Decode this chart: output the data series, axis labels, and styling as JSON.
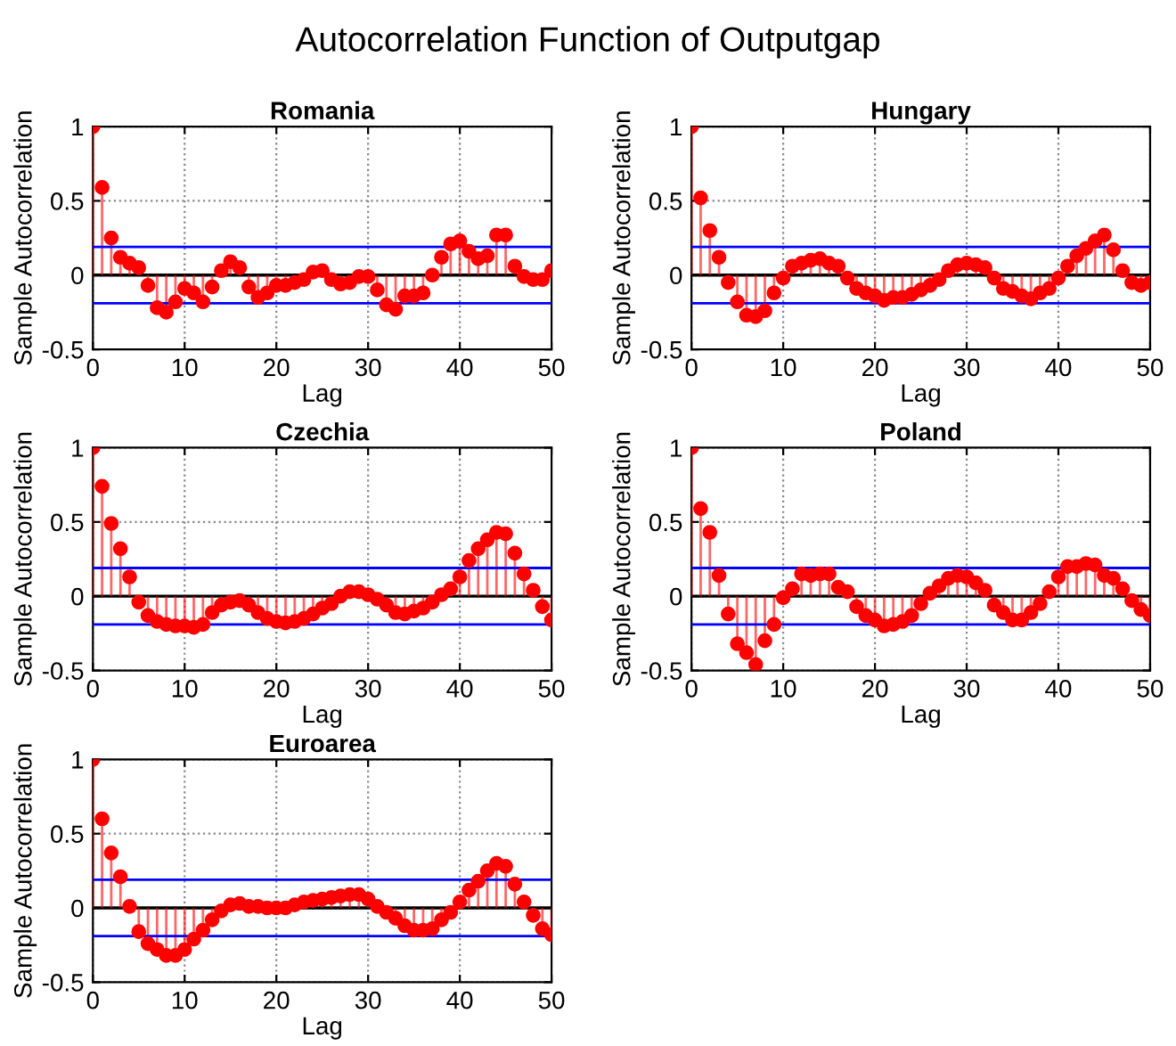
{
  "chart_data": [
    {
      "type": "lollipop",
      "title": "Romania",
      "xlabel": "Lag",
      "ylabel": "Sample Autocorrelation",
      "annotations": [
        "Autocorrelation Function of Outputgap"
      ],
      "x": [
        0,
        1,
        2,
        3,
        4,
        5,
        6,
        7,
        8,
        9,
        10,
        11,
        12,
        13,
        14,
        15,
        16,
        17,
        18,
        19,
        20,
        21,
        22,
        23,
        24,
        25,
        26,
        27,
        28,
        29,
        30,
        31,
        32,
        33,
        34,
        35,
        36,
        37,
        38,
        39,
        40,
        41,
        42,
        43,
        44,
        45,
        46,
        47,
        48,
        49,
        50
      ],
      "series": [
        {
          "color": "#ff0000",
          "values": [
            1,
            0.59,
            0.25,
            0.12,
            0.08,
            0.05,
            -0.07,
            -0.22,
            -0.25,
            -0.18,
            -0.09,
            -0.12,
            -0.18,
            -0.08,
            0.03,
            0.09,
            0.05,
            -0.08,
            -0.15,
            -0.12,
            -0.07,
            -0.07,
            -0.05,
            -0.03,
            0.02,
            0.03,
            -0.03,
            -0.06,
            -0.05,
            -0.01,
            -0.01,
            -0.1,
            -0.2,
            -0.23,
            -0.14,
            -0.14,
            -0.12,
            0.0,
            0.12,
            0.21,
            0.23,
            0.16,
            0.11,
            0.13,
            0.27,
            0.27,
            0.06,
            -0.01,
            -0.03,
            -0.03,
            0.03
          ]
        }
      ],
      "xlim": [
        0,
        50
      ],
      "xticks": [
        0,
        10,
        20,
        30,
        40,
        50
      ],
      "ylim": [
        -0.5,
        1
      ],
      "yticks": [
        -0.5,
        0,
        0.5,
        1
      ],
      "grid": true,
      "marker": "circle",
      "ref_lines": [
        {
          "axis": "y",
          "value": 0.19,
          "color": "#0000ff"
        },
        {
          "axis": "y",
          "value": -0.19,
          "color": "#0000ff"
        }
      ]
    },
    {
      "type": "lollipop",
      "title": "Hungary",
      "xlabel": "Lag",
      "ylabel": "Sample Autocorrelation",
      "x": [
        0,
        1,
        2,
        3,
        4,
        5,
        6,
        7,
        8,
        9,
        10,
        11,
        12,
        13,
        14,
        15,
        16,
        17,
        18,
        19,
        20,
        21,
        22,
        23,
        24,
        25,
        26,
        27,
        28,
        29,
        30,
        31,
        32,
        33,
        34,
        35,
        36,
        37,
        38,
        39,
        40,
        41,
        42,
        43,
        44,
        45,
        46,
        47,
        48,
        49,
        50
      ],
      "series": [
        {
          "color": "#ff0000",
          "values": [
            1,
            0.52,
            0.3,
            0.12,
            -0.05,
            -0.18,
            -0.27,
            -0.28,
            -0.24,
            -0.12,
            -0.02,
            0.06,
            0.08,
            0.1,
            0.11,
            0.08,
            0.06,
            -0.02,
            -0.09,
            -0.12,
            -0.14,
            -0.17,
            -0.15,
            -0.15,
            -0.13,
            -0.1,
            -0.07,
            -0.03,
            0.03,
            0.07,
            0.08,
            0.07,
            0.05,
            -0.02,
            -0.09,
            -0.11,
            -0.14,
            -0.16,
            -0.12,
            -0.09,
            -0.02,
            0.06,
            0.13,
            0.18,
            0.23,
            0.27,
            0.17,
            0.03,
            -0.05,
            -0.07,
            -0.05
          ]
        }
      ],
      "xlim": [
        0,
        50
      ],
      "xticks": [
        0,
        10,
        20,
        30,
        40,
        50
      ],
      "ylim": [
        -0.5,
        1
      ],
      "yticks": [
        -0.5,
        0,
        0.5,
        1
      ],
      "grid": true,
      "marker": "circle",
      "ref_lines": [
        {
          "axis": "y",
          "value": 0.19,
          "color": "#0000ff"
        },
        {
          "axis": "y",
          "value": -0.19,
          "color": "#0000ff"
        }
      ]
    },
    {
      "type": "lollipop",
      "title": "Czechia",
      "xlabel": "Lag",
      "ylabel": "Sample Autocorrelation",
      "x": [
        0,
        1,
        2,
        3,
        4,
        5,
        6,
        7,
        8,
        9,
        10,
        11,
        12,
        13,
        14,
        15,
        16,
        17,
        18,
        19,
        20,
        21,
        22,
        23,
        24,
        25,
        26,
        27,
        28,
        29,
        30,
        31,
        32,
        33,
        34,
        35,
        36,
        37,
        38,
        39,
        40,
        41,
        42,
        43,
        44,
        45,
        46,
        47,
        48,
        49,
        50
      ],
      "series": [
        {
          "color": "#ff0000",
          "values": [
            1,
            0.74,
            0.49,
            0.32,
            0.13,
            -0.04,
            -0.13,
            -0.17,
            -0.19,
            -0.2,
            -0.2,
            -0.21,
            -0.19,
            -0.11,
            -0.06,
            -0.04,
            -0.03,
            -0.06,
            -0.11,
            -0.15,
            -0.17,
            -0.18,
            -0.17,
            -0.15,
            -0.12,
            -0.08,
            -0.05,
            0.0,
            0.03,
            0.03,
            0.01,
            -0.02,
            -0.06,
            -0.11,
            -0.12,
            -0.1,
            -0.08,
            -0.04,
            0.01,
            0.05,
            0.13,
            0.24,
            0.32,
            0.38,
            0.43,
            0.42,
            0.29,
            0.15,
            0.04,
            -0.07,
            -0.16
          ]
        }
      ],
      "xlim": [
        0,
        50
      ],
      "xticks": [
        0,
        10,
        20,
        30,
        40,
        50
      ],
      "ylim": [
        -0.5,
        1
      ],
      "yticks": [
        -0.5,
        0,
        0.5,
        1
      ],
      "grid": true,
      "marker": "circle",
      "ref_lines": [
        {
          "axis": "y",
          "value": 0.19,
          "color": "#0000ff"
        },
        {
          "axis": "y",
          "value": -0.19,
          "color": "#0000ff"
        }
      ]
    },
    {
      "type": "lollipop",
      "title": "Poland",
      "xlabel": "Lag",
      "ylabel": "Sample Autocorrelation",
      "x": [
        0,
        1,
        2,
        3,
        4,
        5,
        6,
        7,
        8,
        9,
        10,
        11,
        12,
        13,
        14,
        15,
        16,
        17,
        18,
        19,
        20,
        21,
        22,
        23,
        24,
        25,
        26,
        27,
        28,
        29,
        30,
        31,
        32,
        33,
        34,
        35,
        36,
        37,
        38,
        39,
        40,
        41,
        42,
        43,
        44,
        45,
        46,
        47,
        48,
        49,
        50
      ],
      "series": [
        {
          "color": "#ff0000",
          "values": [
            1,
            0.59,
            0.43,
            0.14,
            -0.12,
            -0.32,
            -0.38,
            -0.46,
            -0.3,
            -0.19,
            -0.01,
            0.05,
            0.15,
            0.14,
            0.15,
            0.15,
            0.06,
            0.03,
            -0.07,
            -0.13,
            -0.16,
            -0.2,
            -0.19,
            -0.17,
            -0.13,
            -0.05,
            0.02,
            0.07,
            0.12,
            0.14,
            0.13,
            0.09,
            0.04,
            -0.06,
            -0.11,
            -0.16,
            -0.16,
            -0.11,
            -0.05,
            0.03,
            0.13,
            0.2,
            0.2,
            0.22,
            0.21,
            0.14,
            0.12,
            0.05,
            -0.03,
            -0.09,
            -0.13
          ]
        }
      ],
      "xlim": [
        0,
        50
      ],
      "xticks": [
        0,
        10,
        20,
        30,
        40,
        50
      ],
      "ylim": [
        -0.5,
        1
      ],
      "yticks": [
        -0.5,
        0,
        0.5,
        1
      ],
      "grid": true,
      "marker": "circle",
      "ref_lines": [
        {
          "axis": "y",
          "value": 0.19,
          "color": "#0000ff"
        },
        {
          "axis": "y",
          "value": -0.19,
          "color": "#0000ff"
        }
      ]
    },
    {
      "type": "lollipop",
      "title": "Euroarea",
      "xlabel": "Lag",
      "ylabel": "Sample Autocorrelation",
      "x": [
        0,
        1,
        2,
        3,
        4,
        5,
        6,
        7,
        8,
        9,
        10,
        11,
        12,
        13,
        14,
        15,
        16,
        17,
        18,
        19,
        20,
        21,
        22,
        23,
        24,
        25,
        26,
        27,
        28,
        29,
        30,
        31,
        32,
        33,
        34,
        35,
        36,
        37,
        38,
        39,
        40,
        41,
        42,
        43,
        44,
        45,
        46,
        47,
        48,
        49,
        50
      ],
      "series": [
        {
          "color": "#ff0000",
          "values": [
            1,
            0.6,
            0.37,
            0.21,
            0.01,
            -0.16,
            -0.24,
            -0.28,
            -0.32,
            -0.32,
            -0.28,
            -0.21,
            -0.15,
            -0.08,
            -0.02,
            0.02,
            0.03,
            0.01,
            0.01,
            0.0,
            0.0,
            0.0,
            0.02,
            0.04,
            0.05,
            0.06,
            0.07,
            0.08,
            0.09,
            0.09,
            0.06,
            0.01,
            -0.03,
            -0.07,
            -0.12,
            -0.15,
            -0.15,
            -0.14,
            -0.08,
            -0.03,
            0.04,
            0.12,
            0.18,
            0.25,
            0.3,
            0.28,
            0.16,
            0.04,
            -0.05,
            -0.14,
            -0.18
          ]
        }
      ],
      "xlim": [
        0,
        50
      ],
      "xticks": [
        0,
        10,
        20,
        30,
        40,
        50
      ],
      "ylim": [
        -0.5,
        1
      ],
      "yticks": [
        -0.5,
        0,
        0.5,
        1
      ],
      "grid": true,
      "marker": "circle",
      "ref_lines": [
        {
          "axis": "y",
          "value": 0.19,
          "color": "#0000ff"
        },
        {
          "axis": "y",
          "value": -0.19,
          "color": "#0000ff"
        }
      ]
    }
  ]
}
